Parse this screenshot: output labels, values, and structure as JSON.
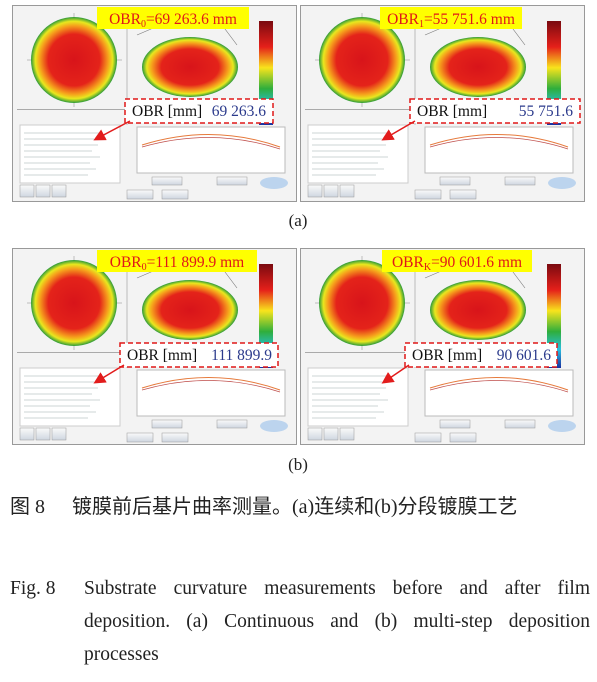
{
  "panels": [
    {
      "label": "(a)",
      "screens": [
        {
          "obr": {
            "name": "OBR",
            "sub": "0",
            "value": "=69 263.6 mm"
          },
          "box": {
            "label": "OBR [mm]",
            "value": "69 263.6"
          }
        },
        {
          "obr": {
            "name": "OBR",
            "sub": "1",
            "value": "=55 751.6 mm"
          },
          "box": {
            "label": "OBR [mm]",
            "value": "55 751.6"
          }
        }
      ]
    },
    {
      "label": "(b)",
      "screens": [
        {
          "obr": {
            "name": "OBR",
            "sub": "0",
            "value": "=111 899.9 mm"
          },
          "box": {
            "label": "OBR [mm]",
            "value": "111 899.9"
          }
        },
        {
          "obr": {
            "name": "OBR",
            "sub": "K",
            "value": "=90 601.6 mm"
          },
          "box": {
            "label": "OBR [mm]",
            "value": "90 601.6"
          }
        }
      ]
    }
  ],
  "caption": {
    "zh": {
      "label": "图 8",
      "text": "镀膜前后基片曲率测量。(a)连续和(b)分段镀膜工艺"
    },
    "en": {
      "label": "Fig. 8",
      "text": "Substrate curvature measurements before and after film deposition. (a) Continuous and (b) multi-step deposition processes"
    }
  }
}
